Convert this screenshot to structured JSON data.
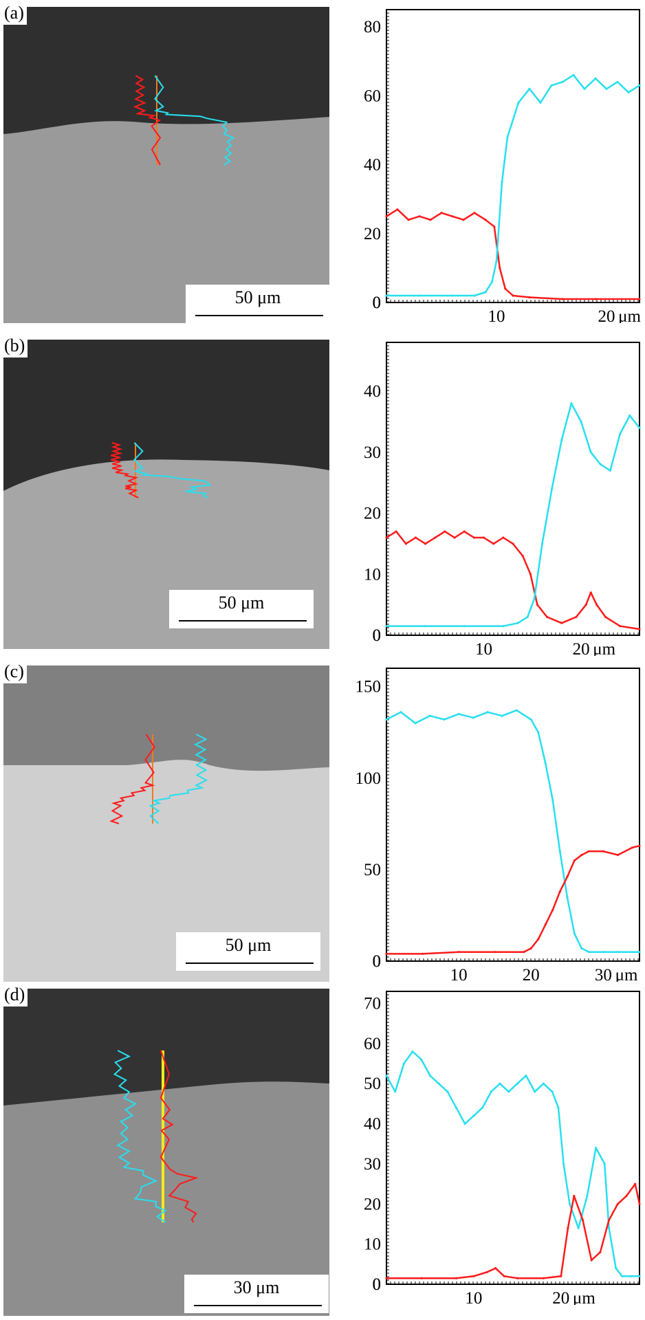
{
  "panels": [
    {
      "label": "(a)",
      "scale": {
        "value": "50",
        "unit": "μm"
      },
      "image": {
        "top_color": "#2f2f2f",
        "bottom_color": "#9a9a9a"
      },
      "chart_data": {
        "type": "line",
        "xlim": [
          0,
          23
        ],
        "ylim": [
          0,
          85
        ],
        "xticks": [
          10,
          20
        ],
        "xtick_labels": [
          "10",
          "20"
        ],
        "x_unit": "μm",
        "yticks": [
          0,
          20,
          40,
          60,
          80
        ],
        "ytick_labels": [
          "0",
          "20",
          "40",
          "60",
          "80"
        ],
        "series": [
          {
            "color": "#ff1a1a",
            "values": [
              [
                0,
                25
              ],
              [
                1,
                27
              ],
              [
                2,
                24
              ],
              [
                3,
                25
              ],
              [
                4,
                24
              ],
              [
                5,
                26
              ],
              [
                6,
                25
              ],
              [
                7,
                24
              ],
              [
                8,
                26
              ],
              [
                9,
                24
              ],
              [
                9.8,
                22
              ],
              [
                10.3,
                10
              ],
              [
                10.8,
                4
              ],
              [
                11.5,
                2
              ],
              [
                13,
                1.5
              ],
              [
                16,
                1
              ],
              [
                19,
                1
              ],
              [
                23,
                1
              ]
            ]
          },
          {
            "color": "#27dff0",
            "values": [
              [
                0,
                2
              ],
              [
                3,
                2
              ],
              [
                6,
                2
              ],
              [
                8,
                2
              ],
              [
                9,
                3
              ],
              [
                9.6,
                6
              ],
              [
                10,
                12
              ],
              [
                10.5,
                35
              ],
              [
                11,
                48
              ],
              [
                12,
                58
              ],
              [
                13,
                62
              ],
              [
                14,
                58
              ],
              [
                15,
                63
              ],
              [
                16,
                64
              ],
              [
                17,
                66
              ],
              [
                18,
                62
              ],
              [
                19,
                65
              ],
              [
                20,
                62
              ],
              [
                21,
                64
              ],
              [
                22,
                61
              ],
              [
                23,
                63
              ]
            ]
          }
        ]
      }
    },
    {
      "label": "(b)",
      "scale": {
        "value": "50",
        "unit": "μm"
      },
      "image": {
        "top_color": "#2d2d2d",
        "bottom_color": "#a6a6a6"
      },
      "chart_data": {
        "type": "line",
        "xlim": [
          0,
          26
        ],
        "ylim": [
          0,
          48
        ],
        "xticks": [
          10,
          20
        ],
        "xtick_labels": [
          "10",
          "20"
        ],
        "x_unit": "μm",
        "yticks": [
          0,
          10,
          20,
          30,
          40
        ],
        "ytick_labels": [
          "0",
          "10",
          "20",
          "30",
          "40"
        ],
        "series": [
          {
            "color": "#ff1a1a",
            "values": [
              [
                0,
                16
              ],
              [
                1,
                17
              ],
              [
                2,
                15
              ],
              [
                3,
                16
              ],
              [
                4,
                15
              ],
              [
                5,
                16
              ],
              [
                6,
                17
              ],
              [
                7,
                16
              ],
              [
                8,
                17
              ],
              [
                9,
                16
              ],
              [
                10,
                16
              ],
              [
                11,
                15
              ],
              [
                12,
                16
              ],
              [
                13,
                15
              ],
              [
                14,
                13
              ],
              [
                14.8,
                10
              ],
              [
                15.5,
                5
              ],
              [
                16.5,
                3
              ],
              [
                18,
                2
              ],
              [
                19.5,
                3
              ],
              [
                20.5,
                5
              ],
              [
                21,
                7
              ],
              [
                21.6,
                5
              ],
              [
                22.5,
                3
              ],
              [
                24,
                1.5
              ],
              [
                26,
                1
              ]
            ]
          },
          {
            "color": "#27dff0",
            "values": [
              [
                0,
                1.5
              ],
              [
                4,
                1.5
              ],
              [
                8,
                1.5
              ],
              [
                12,
                1.5
              ],
              [
                13.5,
                2
              ],
              [
                14.5,
                3
              ],
              [
                15.2,
                6
              ],
              [
                16,
                15
              ],
              [
                17,
                24
              ],
              [
                18,
                32
              ],
              [
                19,
                38
              ],
              [
                20,
                35
              ],
              [
                21,
                30
              ],
              [
                22,
                28
              ],
              [
                23,
                27
              ],
              [
                24,
                33
              ],
              [
                25,
                36
              ],
              [
                26,
                34
              ]
            ]
          }
        ]
      }
    },
    {
      "label": "(c)",
      "scale": {
        "value": "50",
        "unit": "μm"
      },
      "image": {
        "top_color": "#808080",
        "bottom_color": "#cfcfcf"
      },
      "chart_data": {
        "type": "line",
        "xlim": [
          0,
          35
        ],
        "ylim": [
          0,
          160
        ],
        "xticks": [
          10,
          20,
          30
        ],
        "xtick_labels": [
          "10",
          "20",
          "30"
        ],
        "x_unit": "μm",
        "yticks": [
          0,
          50,
          100,
          150
        ],
        "ytick_labels": [
          "0",
          "50",
          "100",
          "150"
        ],
        "series": [
          {
            "color": "#27dff0",
            "values": [
              [
                0,
                132
              ],
              [
                2,
                136
              ],
              [
                4,
                130
              ],
              [
                6,
                134
              ],
              [
                8,
                132
              ],
              [
                10,
                135
              ],
              [
                12,
                133
              ],
              [
                14,
                136
              ],
              [
                16,
                134
              ],
              [
                18,
                137
              ],
              [
                20,
                132
              ],
              [
                21,
                125
              ],
              [
                22,
                108
              ],
              [
                23,
                88
              ],
              [
                24,
                60
              ],
              [
                25,
                35
              ],
              [
                26,
                15
              ],
              [
                27,
                7
              ],
              [
                28,
                5
              ],
              [
                30,
                5
              ],
              [
                32,
                5
              ],
              [
                35,
                5
              ]
            ]
          },
          {
            "color": "#ff1a1a",
            "values": [
              [
                0,
                4
              ],
              [
                5,
                4
              ],
              [
                10,
                5
              ],
              [
                15,
                5
              ],
              [
                19,
                5
              ],
              [
                20,
                7
              ],
              [
                21,
                12
              ],
              [
                22,
                20
              ],
              [
                23,
                28
              ],
              [
                24,
                38
              ],
              [
                25,
                46
              ],
              [
                26,
                55
              ],
              [
                27,
                58
              ],
              [
                28,
                60
              ],
              [
                30,
                60
              ],
              [
                32,
                58
              ],
              [
                34,
                62
              ],
              [
                35,
                63
              ]
            ]
          }
        ]
      }
    },
    {
      "label": "(d)",
      "scale": {
        "value": "30",
        "unit": "μm"
      },
      "image": {
        "top_color": "#333333",
        "bottom_color": "#8e8e8e"
      },
      "chart_data": {
        "type": "line",
        "xlim": [
          0,
          29
        ],
        "ylim": [
          0,
          73
        ],
        "xticks": [
          10,
          20
        ],
        "xtick_labels": [
          "10",
          "20"
        ],
        "x_unit": "μm",
        "yticks": [
          0,
          10,
          20,
          30,
          40,
          50,
          60,
          70
        ],
        "ytick_labels": [
          "0",
          "10",
          "20",
          "30",
          "40",
          "50",
          "60",
          "70"
        ],
        "series": [
          {
            "color": "#27dff0",
            "values": [
              [
                0,
                52
              ],
              [
                1,
                48
              ],
              [
                2,
                55
              ],
              [
                3,
                58
              ],
              [
                4,
                56
              ],
              [
                5,
                52
              ],
              [
                6,
                50
              ],
              [
                7,
                48
              ],
              [
                8,
                44
              ],
              [
                9,
                40
              ],
              [
                10,
                42
              ],
              [
                11,
                44
              ],
              [
                12,
                48
              ],
              [
                13,
                50
              ],
              [
                14,
                48
              ],
              [
                15,
                50
              ],
              [
                16,
                52
              ],
              [
                17,
                48
              ],
              [
                18,
                50
              ],
              [
                19,
                48
              ],
              [
                19.7,
                44
              ],
              [
                20.3,
                30
              ],
              [
                21,
                20
              ],
              [
                22,
                14
              ],
              [
                23,
                22
              ],
              [
                24,
                34
              ],
              [
                25,
                30
              ],
              [
                25.5,
                14
              ],
              [
                26.3,
                4
              ],
              [
                27,
                2
              ],
              [
                28,
                2
              ],
              [
                29,
                2
              ]
            ]
          },
          {
            "color": "#ff1a1a",
            "values": [
              [
                0,
                1.5
              ],
              [
                4,
                1.5
              ],
              [
                8,
                1.5
              ],
              [
                10,
                2
              ],
              [
                11.5,
                3
              ],
              [
                12.5,
                4
              ],
              [
                13.5,
                2
              ],
              [
                15,
                1.5
              ],
              [
                18,
                1.5
              ],
              [
                20,
                2
              ],
              [
                20.8,
                14
              ],
              [
                21.5,
                22
              ],
              [
                22.5,
                16
              ],
              [
                23.5,
                6
              ],
              [
                24.5,
                8
              ],
              [
                25.5,
                16
              ],
              [
                26.5,
                20
              ],
              [
                27.5,
                22
              ],
              [
                28.5,
                25
              ],
              [
                29,
                20
              ]
            ]
          }
        ]
      }
    }
  ]
}
